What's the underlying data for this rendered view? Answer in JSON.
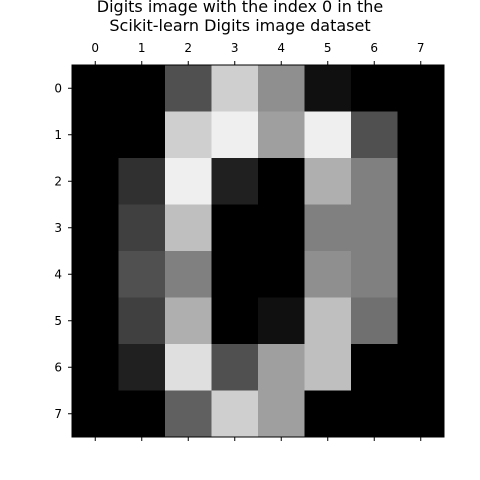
{
  "chart_data": {
    "type": "heatmap",
    "title_lines": [
      "Digits image with the index 0 in the",
      "Scikit-learn Digits image dataset"
    ],
    "colormap": "gray",
    "value_range": [
      0,
      16
    ],
    "x_ticks": [
      "0",
      "1",
      "2",
      "3",
      "4",
      "5",
      "6",
      "7"
    ],
    "y_ticks": [
      "0",
      "1",
      "2",
      "3",
      "4",
      "5",
      "6",
      "7"
    ],
    "x_tick_position": "top",
    "xlabel": "",
    "ylabel": "",
    "grid": false,
    "values": [
      [
        0,
        0,
        5,
        13,
        9,
        1,
        0,
        0
      ],
      [
        0,
        0,
        13,
        15,
        10,
        15,
        5,
        0
      ],
      [
        0,
        3,
        15,
        2,
        0,
        11,
        8,
        0
      ],
      [
        0,
        4,
        12,
        0,
        0,
        8,
        8,
        0
      ],
      [
        0,
        5,
        8,
        0,
        0,
        9,
        8,
        0
      ],
      [
        0,
        4,
        11,
        0,
        1,
        12,
        7,
        0
      ],
      [
        0,
        2,
        14,
        5,
        10,
        12,
        0,
        0
      ],
      [
        0,
        0,
        6,
        13,
        10,
        0,
        0,
        0
      ]
    ]
  }
}
